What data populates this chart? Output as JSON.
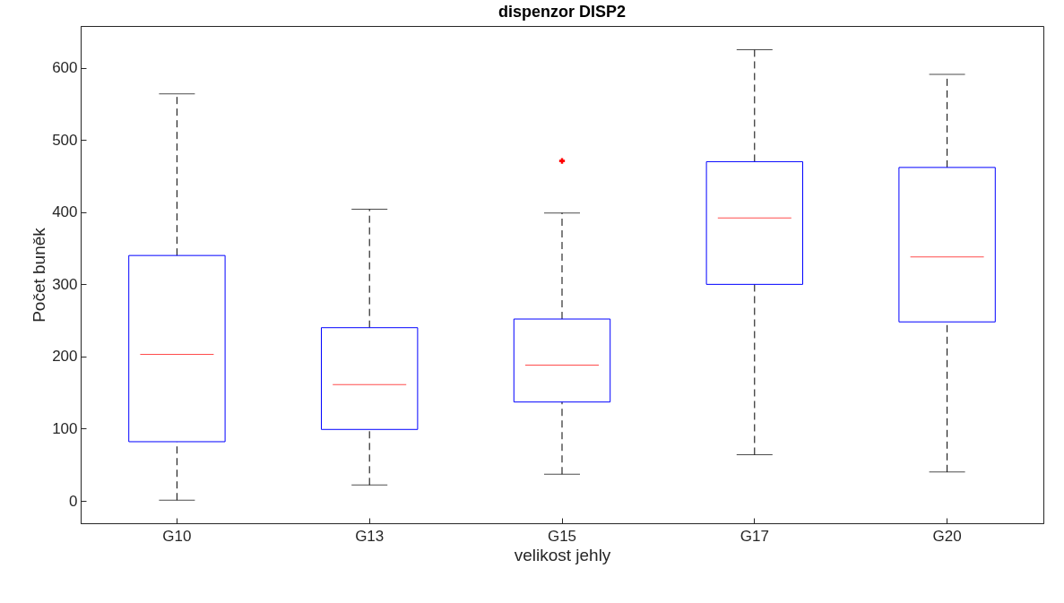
{
  "chart_data": {
    "type": "box",
    "title": "dispenzor DISP2",
    "xlabel": "velikost jehly",
    "ylabel": "Počet buněk",
    "categories": [
      "G10",
      "G13",
      "G15",
      "G17",
      "G20"
    ],
    "boxes": [
      {
        "low": 1,
        "q1": 82,
        "median": 203,
        "q3": 340,
        "high": 564
      },
      {
        "low": 22,
        "q1": 99,
        "median": 161,
        "q3": 240,
        "high": 404
      },
      {
        "low": 37,
        "q1": 137,
        "median": 188,
        "q3": 252,
        "high": 399,
        "outliers": [
          471
        ]
      },
      {
        "low": 64,
        "q1": 300,
        "median": 392,
        "q3": 470,
        "high": 625
      },
      {
        "low": 40,
        "q1": 248,
        "median": 338,
        "q3": 462,
        "high": 591
      }
    ],
    "marker": "cross",
    "ylim": [
      -31,
      658
    ],
    "yticks": [
      0,
      100,
      200,
      300,
      400,
      500,
      600
    ],
    "grid": false
  }
}
